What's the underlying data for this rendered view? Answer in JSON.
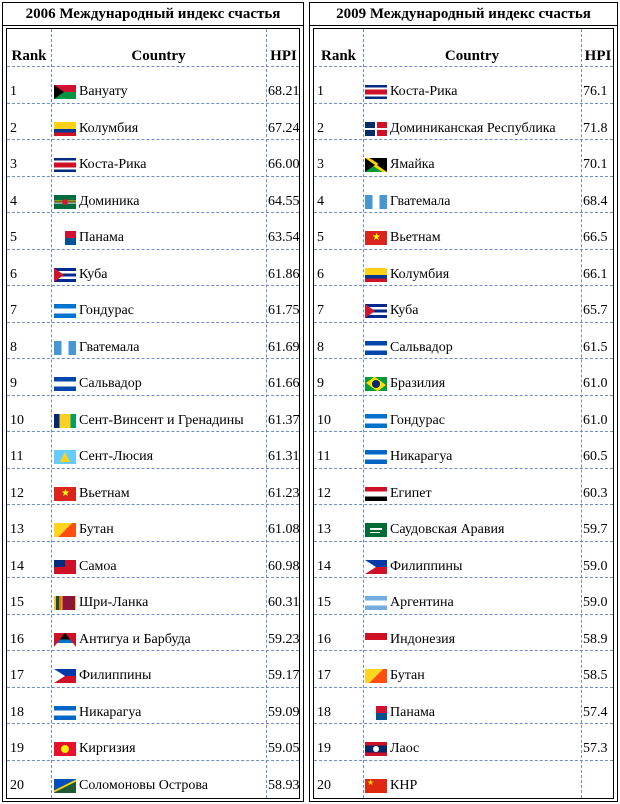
{
  "tables": [
    {
      "title": "2006 Международный индекс счастья",
      "headers": {
        "rank": "Rank",
        "country": "Country",
        "hpi": "HPI"
      },
      "rows": [
        {
          "rank": "1",
          "country": "Вануату",
          "hpi": "68.21",
          "flag": "vanuatu-flag"
        },
        {
          "rank": "2",
          "country": "Колумбия",
          "hpi": "67.24",
          "flag": "colombia-flag"
        },
        {
          "rank": "3",
          "country": "Коста-Рика",
          "hpi": "66.00",
          "flag": "costa-rica-flag"
        },
        {
          "rank": "4",
          "country": "Доминика",
          "hpi": "64.55",
          "flag": "dominica-flag"
        },
        {
          "rank": "5",
          "country": "Панама",
          "hpi": "63.54",
          "flag": "panama-flag"
        },
        {
          "rank": "6",
          "country": "Куба",
          "hpi": "61.86",
          "flag": "cuba-flag"
        },
        {
          "rank": "7",
          "country": "Гондурас",
          "hpi": "61.75",
          "flag": "honduras-flag"
        },
        {
          "rank": "8",
          "country": "Гватемала",
          "hpi": "61.69",
          "flag": "guatemala-flag"
        },
        {
          "rank": "9",
          "country": "Сальвадор",
          "hpi": "61.66",
          "flag": "el-salvador-flag"
        },
        {
          "rank": "10",
          "country": "Сент-Винсент и Гренадины",
          "hpi": "61.37",
          "flag": "saint-vincent-flag"
        },
        {
          "rank": "11",
          "country": "Сент-Люсия",
          "hpi": "61.31",
          "flag": "saint-lucia-flag"
        },
        {
          "rank": "12",
          "country": "Вьетнам",
          "hpi": "61.23",
          "flag": "vietnam-flag"
        },
        {
          "rank": "13",
          "country": "Бутан",
          "hpi": "61.08",
          "flag": "bhutan-flag"
        },
        {
          "rank": "14",
          "country": "Самоа",
          "hpi": "60.98",
          "flag": "samoa-flag"
        },
        {
          "rank": "15",
          "country": "Шри-Ланка",
          "hpi": "60.31",
          "flag": "sri-lanka-flag"
        },
        {
          "rank": "16",
          "country": "Антигуа и Барбуда",
          "hpi": "59.23",
          "flag": "antigua-flag"
        },
        {
          "rank": "17",
          "country": "Филиппины",
          "hpi": "59.17",
          "flag": "philippines-flag"
        },
        {
          "rank": "18",
          "country": "Никарагуа",
          "hpi": "59.09",
          "flag": "nicaragua-flag"
        },
        {
          "rank": "19",
          "country": "Киргизия",
          "hpi": "59.05",
          "flag": "kyrgyzstan-flag"
        },
        {
          "rank": "20",
          "country": "Соломоновы Острова",
          "hpi": "58.93",
          "flag": "solomon-islands-flag"
        }
      ]
    },
    {
      "title": "2009 Международный индекс счастья",
      "headers": {
        "rank": "Rank",
        "country": "Country",
        "hpi": "HPI"
      },
      "rows": [
        {
          "rank": "1",
          "country": "Коста-Рика",
          "hpi": "76.1",
          "flag": "costa-rica-flag"
        },
        {
          "rank": "2",
          "country": "Доминиканская Республика",
          "hpi": "71.8",
          "flag": "dominican-republic-flag"
        },
        {
          "rank": "3",
          "country": "Ямайка",
          "hpi": "70.1",
          "flag": "jamaica-flag"
        },
        {
          "rank": "4",
          "country": "Гватемала",
          "hpi": "68.4",
          "flag": "guatemala-flag"
        },
        {
          "rank": "5",
          "country": "Вьетнам",
          "hpi": "66.5",
          "flag": "vietnam-flag"
        },
        {
          "rank": "6",
          "country": "Колумбия",
          "hpi": "66.1",
          "flag": "colombia-flag"
        },
        {
          "rank": "7",
          "country": "Куба",
          "hpi": "65.7",
          "flag": "cuba-flag"
        },
        {
          "rank": "8",
          "country": "Сальвадор",
          "hpi": "61.5",
          "flag": "el-salvador-flag"
        },
        {
          "rank": "9",
          "country": "Бразилия",
          "hpi": "61.0",
          "flag": "brazil-flag"
        },
        {
          "rank": "10",
          "country": "Гондурас",
          "hpi": "61.0",
          "flag": "honduras-flag"
        },
        {
          "rank": "11",
          "country": "Никарагуа",
          "hpi": "60.5",
          "flag": "nicaragua-flag"
        },
        {
          "rank": "12",
          "country": "Египет",
          "hpi": "60.3",
          "flag": "egypt-flag"
        },
        {
          "rank": "13",
          "country": "Саудовская Аравия",
          "hpi": "59.7",
          "flag": "saudi-arabia-flag"
        },
        {
          "rank": "14",
          "country": "Филиппины",
          "hpi": "59.0",
          "flag": "philippines-flag"
        },
        {
          "rank": "15",
          "country": "Аргентина",
          "hpi": "59.0",
          "flag": "argentina-flag"
        },
        {
          "rank": "16",
          "country": "Индонезия",
          "hpi": "58.9",
          "flag": "indonesia-flag"
        },
        {
          "rank": "17",
          "country": "Бутан",
          "hpi": "58.5",
          "flag": "bhutan-flag"
        },
        {
          "rank": "18",
          "country": "Панама",
          "hpi": "57.4",
          "flag": "panama-flag"
        },
        {
          "rank": "19",
          "country": "Лаос",
          "hpi": "57.3",
          "flag": "laos-flag"
        },
        {
          "rank": "20",
          "country": "КНР",
          "hpi": "",
          "flag": "china-flag"
        }
      ]
    }
  ]
}
